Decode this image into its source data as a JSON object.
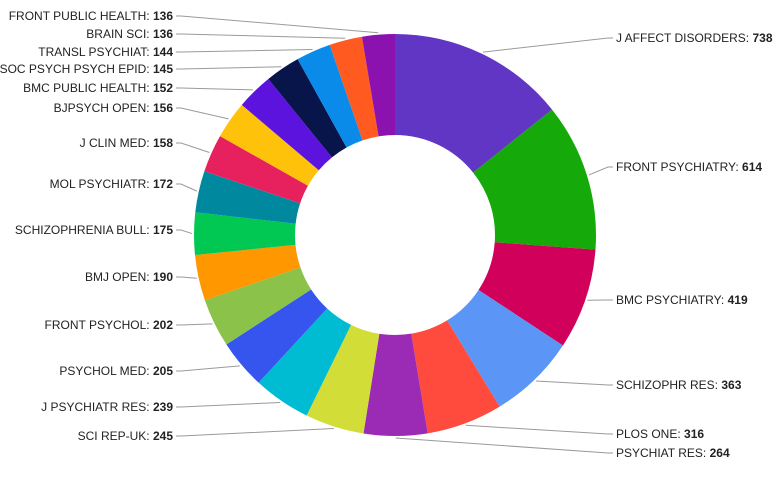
{
  "chart_data": {
    "type": "pie",
    "donut": true,
    "title": "",
    "slices": [
      {
        "label": "J AFFECT DISORDERS",
        "value": 738,
        "color": "#6236c5"
      },
      {
        "label": "FRONT PSYCHIATRY",
        "value": 614,
        "color": "#15aa0a"
      },
      {
        "label": "BMC PSYCHIATRY",
        "value": 419,
        "color": "#d0005b"
      },
      {
        "label": "SCHIZOPHR RES",
        "value": 363,
        "color": "#5b95f5"
      },
      {
        "label": "PLOS ONE",
        "value": 316,
        "color": "#ff4b3e"
      },
      {
        "label": "PSYCHIAT RES",
        "value": 264,
        "color": "#9b2ab5"
      },
      {
        "label": "SCI REP-UK",
        "value": 245,
        "color": "#d2dd38"
      },
      {
        "label": "J PSYCHIATR RES",
        "value": 239,
        "color": "#00bcd2"
      },
      {
        "label": "PSYCHOL MED",
        "value": 205,
        "color": "#3555ee"
      },
      {
        "label": "FRONT PSYCHOL",
        "value": 202,
        "color": "#8bc24a"
      },
      {
        "label": "BMJ OPEN",
        "value": 190,
        "color": "#ff9700"
      },
      {
        "label": "SCHIZOPHRENIA BULL",
        "value": 175,
        "color": "#00c853"
      },
      {
        "label": "MOL PSYCHIATR",
        "value": 172,
        "color": "#00899e"
      },
      {
        "label": "J CLIN MED",
        "value": 158,
        "color": "#e6215e"
      },
      {
        "label": "BJPSYCH OPEN",
        "value": 156,
        "color": "#ffc20a"
      },
      {
        "label": "BMC PUBLIC HEALTH",
        "value": 152,
        "color": "#5c13dd"
      },
      {
        "label": "SOC PSYCH PSYCH EPID",
        "value": 145,
        "color": "#07154a"
      },
      {
        "label": "TRANSL PSYCHIAT",
        "value": 144,
        "color": "#0a8bea"
      },
      {
        "label": "BRAIN SCI",
        "value": 136,
        "color": "#ff5a1f"
      },
      {
        "label": "FRONT PUBLIC HEALTH",
        "value": 136,
        "color": "#8c12b0"
      }
    ]
  }
}
